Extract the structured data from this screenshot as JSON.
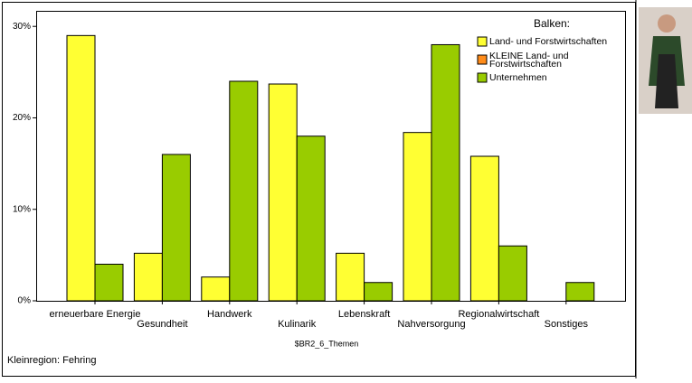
{
  "chart_data": {
    "type": "bar",
    "categories": [
      "erneuerbare Energie",
      "Gesundheit",
      "Handwerk",
      "Kulinarik",
      "Lebenskraft",
      "Nahversorgung",
      "Regionalwirtschaft",
      "Sonstiges"
    ],
    "series": [
      {
        "name": "Land- und Forstwirtschaften",
        "color": "#ffff33",
        "values": [
          29,
          5.2,
          2.6,
          23.7,
          5.2,
          18.4,
          15.8,
          0
        ]
      },
      {
        "name": "KLEINE Land- und Forstwirtschaften",
        "color": "#ff8c1a",
        "values": [
          null,
          null,
          null,
          null,
          null,
          null,
          null,
          null
        ]
      },
      {
        "name": "Unternehmen",
        "color": "#99cc00",
        "values": [
          4,
          16,
          24,
          18,
          2,
          28,
          6,
          2
        ]
      }
    ],
    "legend_title": "Balken:",
    "legend_position": "upper right",
    "x_label": "$BR2_6_Themen",
    "footnote": "Kleinregion: Fehring",
    "ylim": [
      0,
      31.7
    ],
    "yticks": [
      {
        "value": 0,
        "label": "0%"
      },
      {
        "value": 10,
        "label": "10%"
      },
      {
        "value": 20,
        "label": "20%"
      },
      {
        "value": 30,
        "label": "30%"
      }
    ]
  }
}
